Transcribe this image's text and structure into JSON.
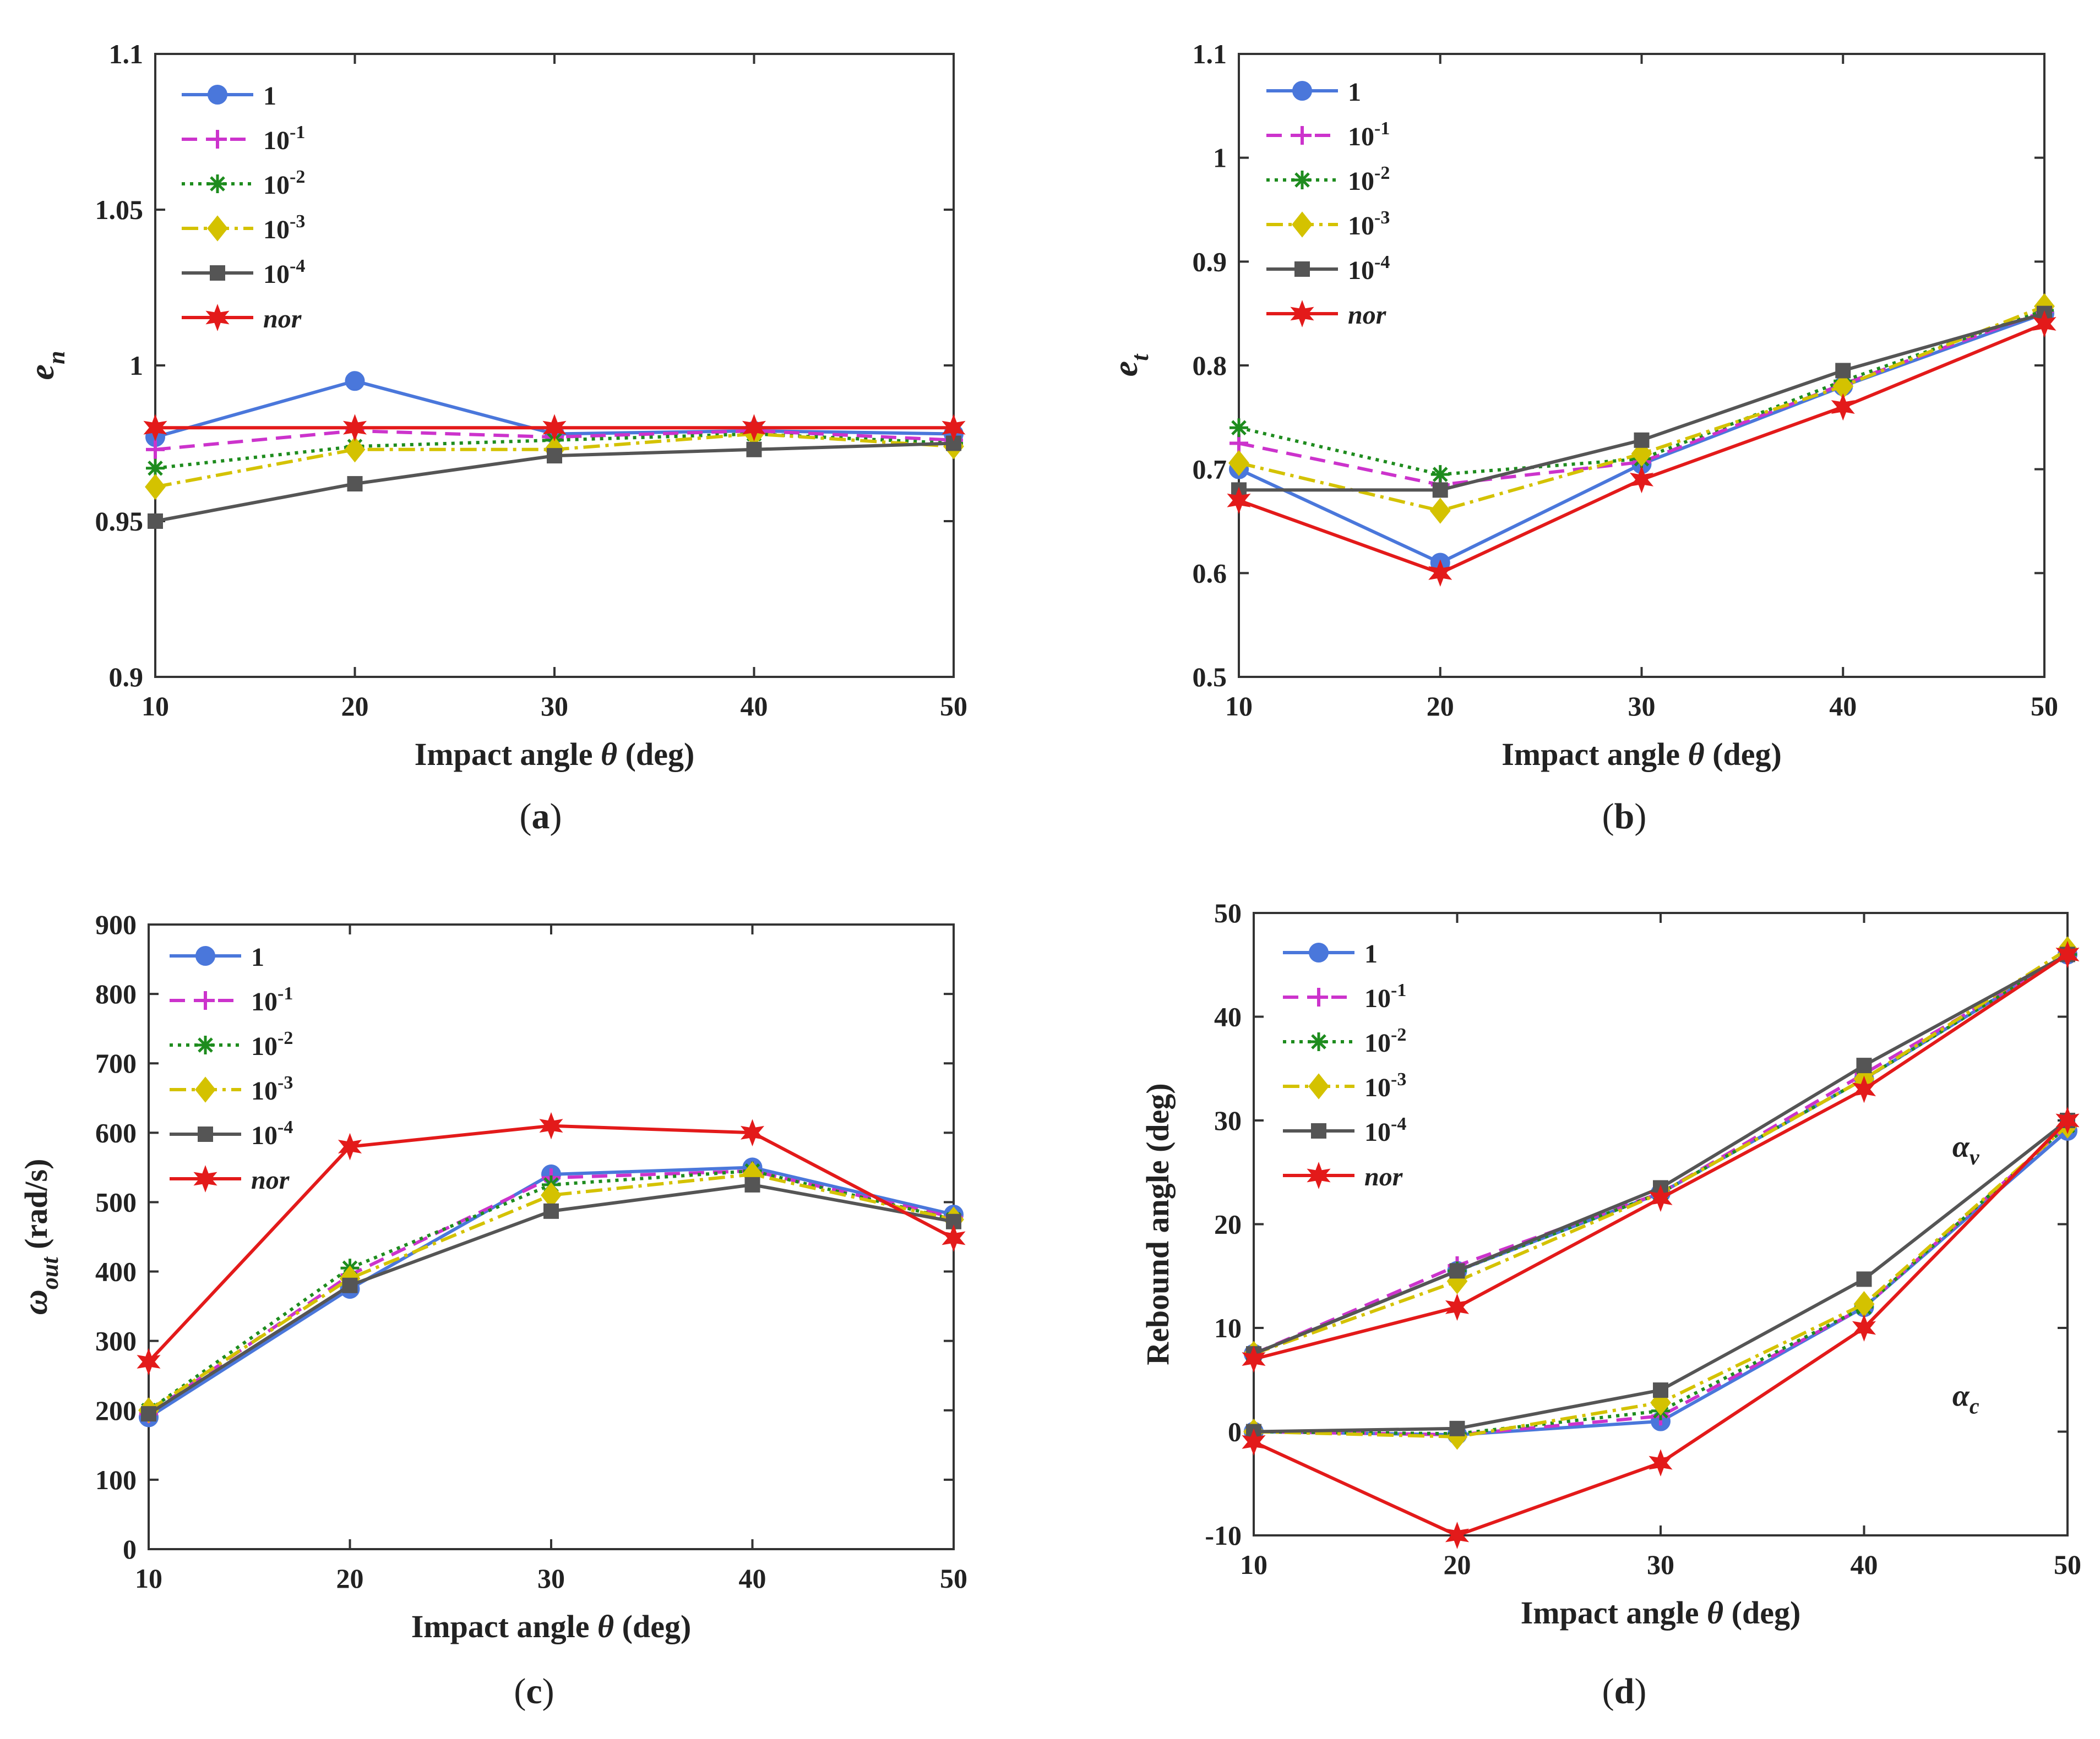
{
  "figure": {
    "series_styles": [
      {
        "key": "s1",
        "label": "1",
        "color": "#4a77db",
        "dash": "",
        "marker": "circle"
      },
      {
        "key": "s2",
        "label": "10",
        "sup": "-1",
        "color": "#cc33cc",
        "dash": "28,16",
        "marker": "plus"
      },
      {
        "key": "s3",
        "label": "10",
        "sup": "-2",
        "color": "#1e8c1e",
        "dash": "6,9",
        "marker": "star"
      },
      {
        "key": "s4",
        "label": "10",
        "sup": "-3",
        "color": "#d4c200",
        "dash": "30,10,6,10",
        "marker": "diamond"
      },
      {
        "key": "s5",
        "label": "10",
        "sup": "-4",
        "color": "#555555",
        "dash": "",
        "marker": "square"
      },
      {
        "key": "s6",
        "label": "nor",
        "italic": true,
        "color": "#e31a1a",
        "dash": "",
        "marker": "hexstar"
      }
    ]
  },
  "chart_data": [
    {
      "id": "a",
      "type": "line",
      "caption": "a",
      "xlabel_pre": "Impact angle ",
      "xlabel_sym": "θ",
      "xlabel_post": " (deg)",
      "ylabel_main": "e",
      "ylabel_sub": "n",
      "x": [
        10,
        20,
        30,
        40,
        50
      ],
      "xlim": [
        10,
        50
      ],
      "xticks": [
        10,
        20,
        30,
        40,
        50
      ],
      "ylim": [
        0.9,
        1.1
      ],
      "yticks": [
        0.9,
        0.95,
        1,
        1.05,
        1.1
      ],
      "ytick_labels": [
        "0.9",
        "0.95",
        "1",
        "1.05",
        "1.1"
      ],
      "legend": "top-left",
      "series": [
        {
          "name": "1",
          "values": [
            0.977,
            0.995,
            0.978,
            0.979,
            0.978
          ]
        },
        {
          "name": "10^-1",
          "values": [
            0.973,
            0.979,
            0.977,
            0.979,
            0.976
          ]
        },
        {
          "name": "10^-2",
          "values": [
            0.967,
            0.974,
            0.976,
            0.978,
            0.975
          ]
        },
        {
          "name": "10^-3",
          "values": [
            0.961,
            0.973,
            0.973,
            0.978,
            0.974
          ]
        },
        {
          "name": "10^-4",
          "values": [
            0.95,
            0.962,
            0.971,
            0.973,
            0.975
          ]
        },
        {
          "name": "nor",
          "values": [
            0.98,
            0.98,
            0.98,
            0.98,
            0.98
          ]
        }
      ],
      "annotations": []
    },
    {
      "id": "b",
      "type": "line",
      "caption": "b",
      "xlabel_pre": "Impact angle ",
      "xlabel_sym": "θ",
      "xlabel_post": " (deg)",
      "ylabel_main": "e",
      "ylabel_sub": "t",
      "x": [
        10,
        20,
        30,
        40,
        50
      ],
      "xlim": [
        10,
        50
      ],
      "xticks": [
        10,
        20,
        30,
        40,
        50
      ],
      "ylim": [
        0.5,
        1.1
      ],
      "yticks": [
        0.5,
        0.6,
        0.7,
        0.8,
        0.9,
        1,
        1.1
      ],
      "ytick_labels": [
        "0.5",
        "0.6",
        "0.7",
        "0.8",
        "0.9",
        "1",
        "1.1"
      ],
      "legend": "top-left",
      "series": [
        {
          "name": "1",
          "values": [
            0.7,
            0.61,
            0.705,
            0.78,
            0.85
          ]
        },
        {
          "name": "10^-1",
          "values": [
            0.725,
            0.685,
            0.707,
            0.782,
            0.852
          ]
        },
        {
          "name": "10^-2",
          "values": [
            0.74,
            0.695,
            0.71,
            0.785,
            0.853
          ]
        },
        {
          "name": "10^-3",
          "values": [
            0.706,
            0.66,
            0.715,
            0.78,
            0.857
          ]
        },
        {
          "name": "10^-4",
          "values": [
            0.68,
            0.68,
            0.728,
            0.795,
            0.85
          ]
        },
        {
          "name": "nor",
          "values": [
            0.67,
            0.6,
            0.69,
            0.76,
            0.84
          ]
        }
      ],
      "annotations": []
    },
    {
      "id": "c",
      "type": "line",
      "caption": "c",
      "xlabel_pre": "Impact angle ",
      "xlabel_sym": "θ",
      "xlabel_post": " (deg)",
      "ylabel_main": "ω",
      "ylabel_sub": "out",
      "ylabel_post": " (rad/s)",
      "x": [
        10,
        20,
        30,
        40,
        50
      ],
      "xlim": [
        10,
        50
      ],
      "xticks": [
        10,
        20,
        30,
        40,
        50
      ],
      "ylim": [
        0,
        900
      ],
      "yticks": [
        0,
        100,
        200,
        300,
        400,
        500,
        600,
        700,
        800,
        900
      ],
      "ytick_labels": [
        "0",
        "100",
        "200",
        "300",
        "400",
        "500",
        "600",
        "700",
        "800",
        "900"
      ],
      "legend": "top-left",
      "series": [
        {
          "name": "1",
          "values": [
            190,
            375,
            540,
            550,
            482
          ]
        },
        {
          "name": "10^-1",
          "values": [
            195,
            395,
            535,
            545,
            478
          ]
        },
        {
          "name": "10^-2",
          "values": [
            200,
            405,
            525,
            545,
            475
          ]
        },
        {
          "name": "10^-3",
          "values": [
            200,
            390,
            510,
            540,
            475
          ]
        },
        {
          "name": "10^-4",
          "values": [
            195,
            380,
            487,
            525,
            472
          ]
        },
        {
          "name": "nor",
          "values": [
            270,
            580,
            610,
            600,
            448
          ]
        }
      ],
      "annotations": []
    },
    {
      "id": "d",
      "type": "line",
      "caption": "d",
      "xlabel_pre": "Impact angle ",
      "xlabel_sym": "θ",
      "xlabel_post": " (deg)",
      "ylabel_main": "Rebound angle (deg)",
      "x": [
        10,
        20,
        30,
        40,
        50
      ],
      "xlim": [
        10,
        50
      ],
      "xticks": [
        10,
        20,
        30,
        40,
        50
      ],
      "ylim": [
        -10,
        50
      ],
      "yticks": [
        -10,
        0,
        10,
        20,
        30,
        40,
        50
      ],
      "ytick_labels": [
        "-10",
        "0",
        "10",
        "20",
        "30",
        "40",
        "50"
      ],
      "legend": "top-left",
      "series": [
        {
          "name": "1",
          "group": "αv",
          "values": [
            7.5,
            15.5,
            23,
            34,
            46
          ]
        },
        {
          "name": "10^-1",
          "group": "αv",
          "values": [
            7.5,
            16,
            23,
            34.5,
            46
          ]
        },
        {
          "name": "10^-2",
          "group": "αv",
          "values": [
            7.5,
            15.5,
            23,
            34,
            46
          ]
        },
        {
          "name": "10^-3",
          "group": "αv",
          "values": [
            7.5,
            14.5,
            23,
            34,
            46.5
          ]
        },
        {
          "name": "10^-4",
          "group": "αv",
          "values": [
            7.5,
            15.5,
            23.5,
            35.3,
            46
          ]
        },
        {
          "name": "nor",
          "group": "αv",
          "values": [
            7,
            12,
            22.5,
            33,
            46
          ]
        },
        {
          "name": "1",
          "group": "αc",
          "values": [
            0,
            -0.3,
            1,
            12,
            29
          ]
        },
        {
          "name": "10^-1",
          "group": "αc",
          "values": [
            0,
            -0.3,
            1.5,
            12,
            29.5
          ]
        },
        {
          "name": "10^-2",
          "group": "αc",
          "values": [
            0,
            -0.2,
            2,
            12,
            29.5
          ]
        },
        {
          "name": "10^-3",
          "group": "αc",
          "values": [
            0,
            -0.5,
            2.8,
            12.3,
            29.5
          ]
        },
        {
          "name": "10^-4",
          "group": "αc",
          "values": [
            0,
            0.3,
            4,
            14.7,
            30
          ]
        },
        {
          "name": "nor",
          "group": "αc",
          "values": [
            -1,
            -10,
            -3,
            10,
            30
          ]
        }
      ],
      "annotations": [
        {
          "main": "α",
          "sub": "v",
          "x": 45,
          "y": 26.5
        },
        {
          "main": "α",
          "sub": "c",
          "x": 45,
          "y": 2.5
        }
      ]
    }
  ]
}
